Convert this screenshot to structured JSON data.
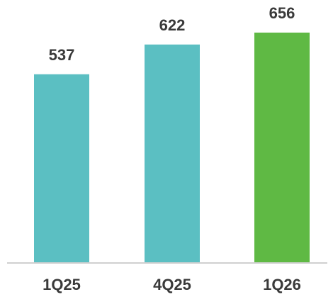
{
  "chart_data": {
    "type": "bar",
    "categories": [
      "1Q25",
      "4Q25",
      "1Q26"
    ],
    "values": [
      537,
      622,
      656
    ],
    "value_labels": [
      "537",
      "622",
      "656"
    ],
    "title": "",
    "xlabel": "",
    "ylabel": "",
    "ylim": [
      0,
      656
    ],
    "grid": false,
    "legend": "none",
    "colors": [
      "#5bbfc2",
      "#5bbfc2",
      "#5fb944"
    ],
    "baseline_color": "#d0d0d0"
  }
}
